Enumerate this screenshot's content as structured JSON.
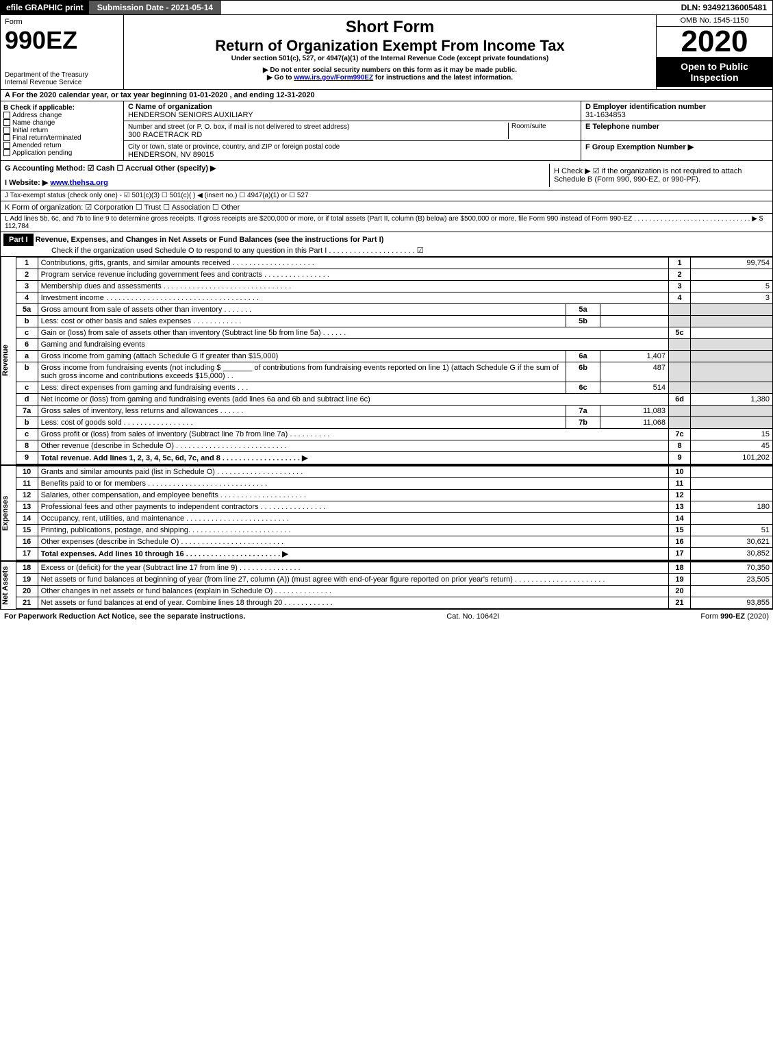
{
  "topbar": {
    "efile": "efile GRAPHIC print",
    "subdate_label": "Submission Date - 2021-05-14",
    "dln": "DLN: 93492136005481"
  },
  "header": {
    "form": "Form",
    "code": "990EZ",
    "dept1": "Department of the Treasury",
    "dept2": "Internal Revenue Service",
    "short": "Short Form",
    "return": "Return of Organization Exempt From Income Tax",
    "under": "Under section 501(c), 527, or 4947(a)(1) of the Internal Revenue Code (except private foundations)",
    "warn": "▶ Do not enter social security numbers on this form as it may be made public.",
    "goto_pre": "▶ Go to ",
    "goto_link": "www.irs.gov/Form990EZ",
    "goto_post": " for instructions and the latest information.",
    "omb": "OMB No. 1545-1150",
    "year": "2020",
    "open": "Open to Public Inspection"
  },
  "lineA": "A  For the 2020 calendar year, or tax year beginning 01-01-2020 , and ending 12-31-2020",
  "boxB": {
    "title": "B  Check if applicable:",
    "opts": [
      "Address change",
      "Name change",
      "Initial return",
      "Final return/terminated",
      "Amended return",
      "Application pending"
    ]
  },
  "boxC": {
    "label": "C Name of organization",
    "name": "HENDERSON SENIORS AUXILIARY",
    "addr_label": "Number and street (or P. O. box, if mail is not delivered to street address)",
    "room": "Room/suite",
    "addr": "300 RACETRACK RD",
    "city_label": "City or town, state or province, country, and ZIP or foreign postal code",
    "city": "HENDERSON, NV  89015"
  },
  "boxD": {
    "label": "D Employer identification number",
    "ein": "31-1634853"
  },
  "boxE": {
    "label": "E Telephone number"
  },
  "boxF": {
    "label": "F Group Exemption Number  ▶"
  },
  "lineG": "G Accounting Method:  ☑ Cash  ☐ Accrual  Other (specify) ▶ ",
  "lineH": "H  Check ▶ ☑ if the organization is not required to attach Schedule B (Form 990, 990-EZ, or 990-PF).",
  "lineI_pre": "I Website: ▶",
  "lineI_link": "www.thehsa.org",
  "lineJ": "J Tax-exempt status (check only one) - ☑ 501(c)(3)  ☐ 501(c)(  ) ◀ (insert no.)  ☐ 4947(a)(1) or  ☐ 527",
  "lineK": "K Form of organization:  ☑ Corporation  ☐ Trust  ☐ Association  ☐ Other ",
  "lineL": "L Add lines 5b, 6c, and 7b to line 9 to determine gross receipts. If gross receipts are $200,000 or more, or if total assets (Part II, column (B) below) are $500,000 or more, file Form 990 instead of Form 990-EZ . . . . . . . . . . . . . . . . . . . . . . . . . . . . . . . ▶ $ 112,784",
  "part1": {
    "hdr": "Part I",
    "title": "Revenue, Expenses, and Changes in Net Assets or Fund Balances (see the instructions for Part I)",
    "check": "Check if the organization used Schedule O to respond to any question in this Part I . . . . . . . . . . . . . . . . . . . . . ☑"
  },
  "sections": {
    "rev": "Revenue",
    "exp": "Expenses",
    "na": "Net Assets"
  },
  "lines": [
    {
      "n": "1",
      "d": "Contributions, gifts, grants, and similar amounts received . . . . . . . . . . . . . . . . . . . .",
      "c": "1",
      "a": "99,754"
    },
    {
      "n": "2",
      "d": "Program service revenue including government fees and contracts . . . . . . . . . . . . . . . .",
      "c": "2",
      "a": ""
    },
    {
      "n": "3",
      "d": "Membership dues and assessments . . . . . . . . . . . . . . . . . . . . . . . . . . . . . . .",
      "c": "3",
      "a": "5"
    },
    {
      "n": "4",
      "d": "Investment income . . . . . . . . . . . . . . . . . . . . . . . . . . . . . . . . . . . . .",
      "c": "4",
      "a": "3"
    },
    {
      "n": "5a",
      "d": "Gross amount from sale of assets other than inventory . . . . . . .",
      "sub": "5a",
      "sv": "",
      "shade": true
    },
    {
      "n": "b",
      "d": "Less: cost or other basis and sales expenses . . . . . . . . . . . .",
      "sub": "5b",
      "sv": "",
      "shade": true
    },
    {
      "n": "c",
      "d": "Gain or (loss) from sale of assets other than inventory (Subtract line 5b from line 5a) . . . . . .",
      "c": "5c",
      "a": ""
    },
    {
      "n": "6",
      "d": "Gaming and fundraising events",
      "shade": true,
      "noamt": true
    },
    {
      "n": "a",
      "d": "Gross income from gaming (attach Schedule G if greater than $15,000)",
      "sub": "6a",
      "sv": "1,407",
      "shade": true
    },
    {
      "n": "b",
      "d": "Gross income from fundraising events (not including $ _______ of contributions from fundraising events reported on line 1) (attach Schedule G if the sum of such gross income and contributions exceeds $15,000)  . .",
      "sub": "6b",
      "sv": "487",
      "shade": true
    },
    {
      "n": "c",
      "d": "Less: direct expenses from gaming and fundraising events  . . .",
      "sub": "6c",
      "sv": "514",
      "shade": true
    },
    {
      "n": "d",
      "d": "Net income or (loss) from gaming and fundraising events (add lines 6a and 6b and subtract line 6c)",
      "c": "6d",
      "a": "1,380"
    },
    {
      "n": "7a",
      "d": "Gross sales of inventory, less returns and allowances . . . . . .",
      "sub": "7a",
      "sv": "11,083",
      "shade": true
    },
    {
      "n": "b",
      "d": "Less: cost of goods sold  . . . . . . . . . . . . . . . . .",
      "sub": "7b",
      "sv": "11,068",
      "shade": true
    },
    {
      "n": "c",
      "d": "Gross profit or (loss) from sales of inventory (Subtract line 7b from line 7a) . . . . . . . . . .",
      "c": "7c",
      "a": "15"
    },
    {
      "n": "8",
      "d": "Other revenue (describe in Schedule O) . . . . . . . . . . . . . . . . . . . . . . . . . . .",
      "c": "8",
      "a": "45"
    },
    {
      "n": "9",
      "d": "Total revenue. Add lines 1, 2, 3, 4, 5c, 6d, 7c, and 8 . . . . . . . . . . . . . . . . . . .  ▶",
      "c": "9",
      "a": "101,202",
      "bold": true
    }
  ],
  "exp_lines": [
    {
      "n": "10",
      "d": "Grants and similar amounts paid (list in Schedule O) . . . . . . . . . . . . . . . . . . . . .",
      "c": "10",
      "a": ""
    },
    {
      "n": "11",
      "d": "Benefits paid to or for members  . . . . . . . . . . . . . . . . . . . . . . . . . . . . .",
      "c": "11",
      "a": ""
    },
    {
      "n": "12",
      "d": "Salaries, other compensation, and employee benefits . . . . . . . . . . . . . . . . . . . . .",
      "c": "12",
      "a": ""
    },
    {
      "n": "13",
      "d": "Professional fees and other payments to independent contractors . . . . . . . . . . . . . . . .",
      "c": "13",
      "a": "180"
    },
    {
      "n": "14",
      "d": "Occupancy, rent, utilities, and maintenance . . . . . . . . . . . . . . . . . . . . . . . . .",
      "c": "14",
      "a": ""
    },
    {
      "n": "15",
      "d": "Printing, publications, postage, and shipping. . . . . . . . . . . . . . . . . . . . . . . . .",
      "c": "15",
      "a": "51"
    },
    {
      "n": "16",
      "d": "Other expenses (describe in Schedule O)  . . . . . . . . . . . . . . . . . . . . . . . . .",
      "c": "16",
      "a": "30,621"
    },
    {
      "n": "17",
      "d": "Total expenses. Add lines 10 through 16  . . . . . . . . . . . . . . . . . . . . . . .  ▶",
      "c": "17",
      "a": "30,852",
      "bold": true
    }
  ],
  "na_lines": [
    {
      "n": "18",
      "d": "Excess or (deficit) for the year (Subtract line 17 from line 9)  . . . . . . . . . . . . . . .",
      "c": "18",
      "a": "70,350"
    },
    {
      "n": "19",
      "d": "Net assets or fund balances at beginning of year (from line 27, column (A)) (must agree with end-of-year figure reported on prior year's return) . . . . . . . . . . . . . . . . . . . . . .",
      "c": "19",
      "a": "23,505"
    },
    {
      "n": "20",
      "d": "Other changes in net assets or fund balances (explain in Schedule O) . . . . . . . . . . . . . .",
      "c": "20",
      "a": ""
    },
    {
      "n": "21",
      "d": "Net assets or fund balances at end of year. Combine lines 18 through 20 . . . . . . . . . . . .",
      "c": "21",
      "a": "93,855"
    }
  ],
  "footer": {
    "left": "For Paperwork Reduction Act Notice, see the separate instructions.",
    "mid": "Cat. No. 10642I",
    "right": "Form 990-EZ (2020)"
  }
}
